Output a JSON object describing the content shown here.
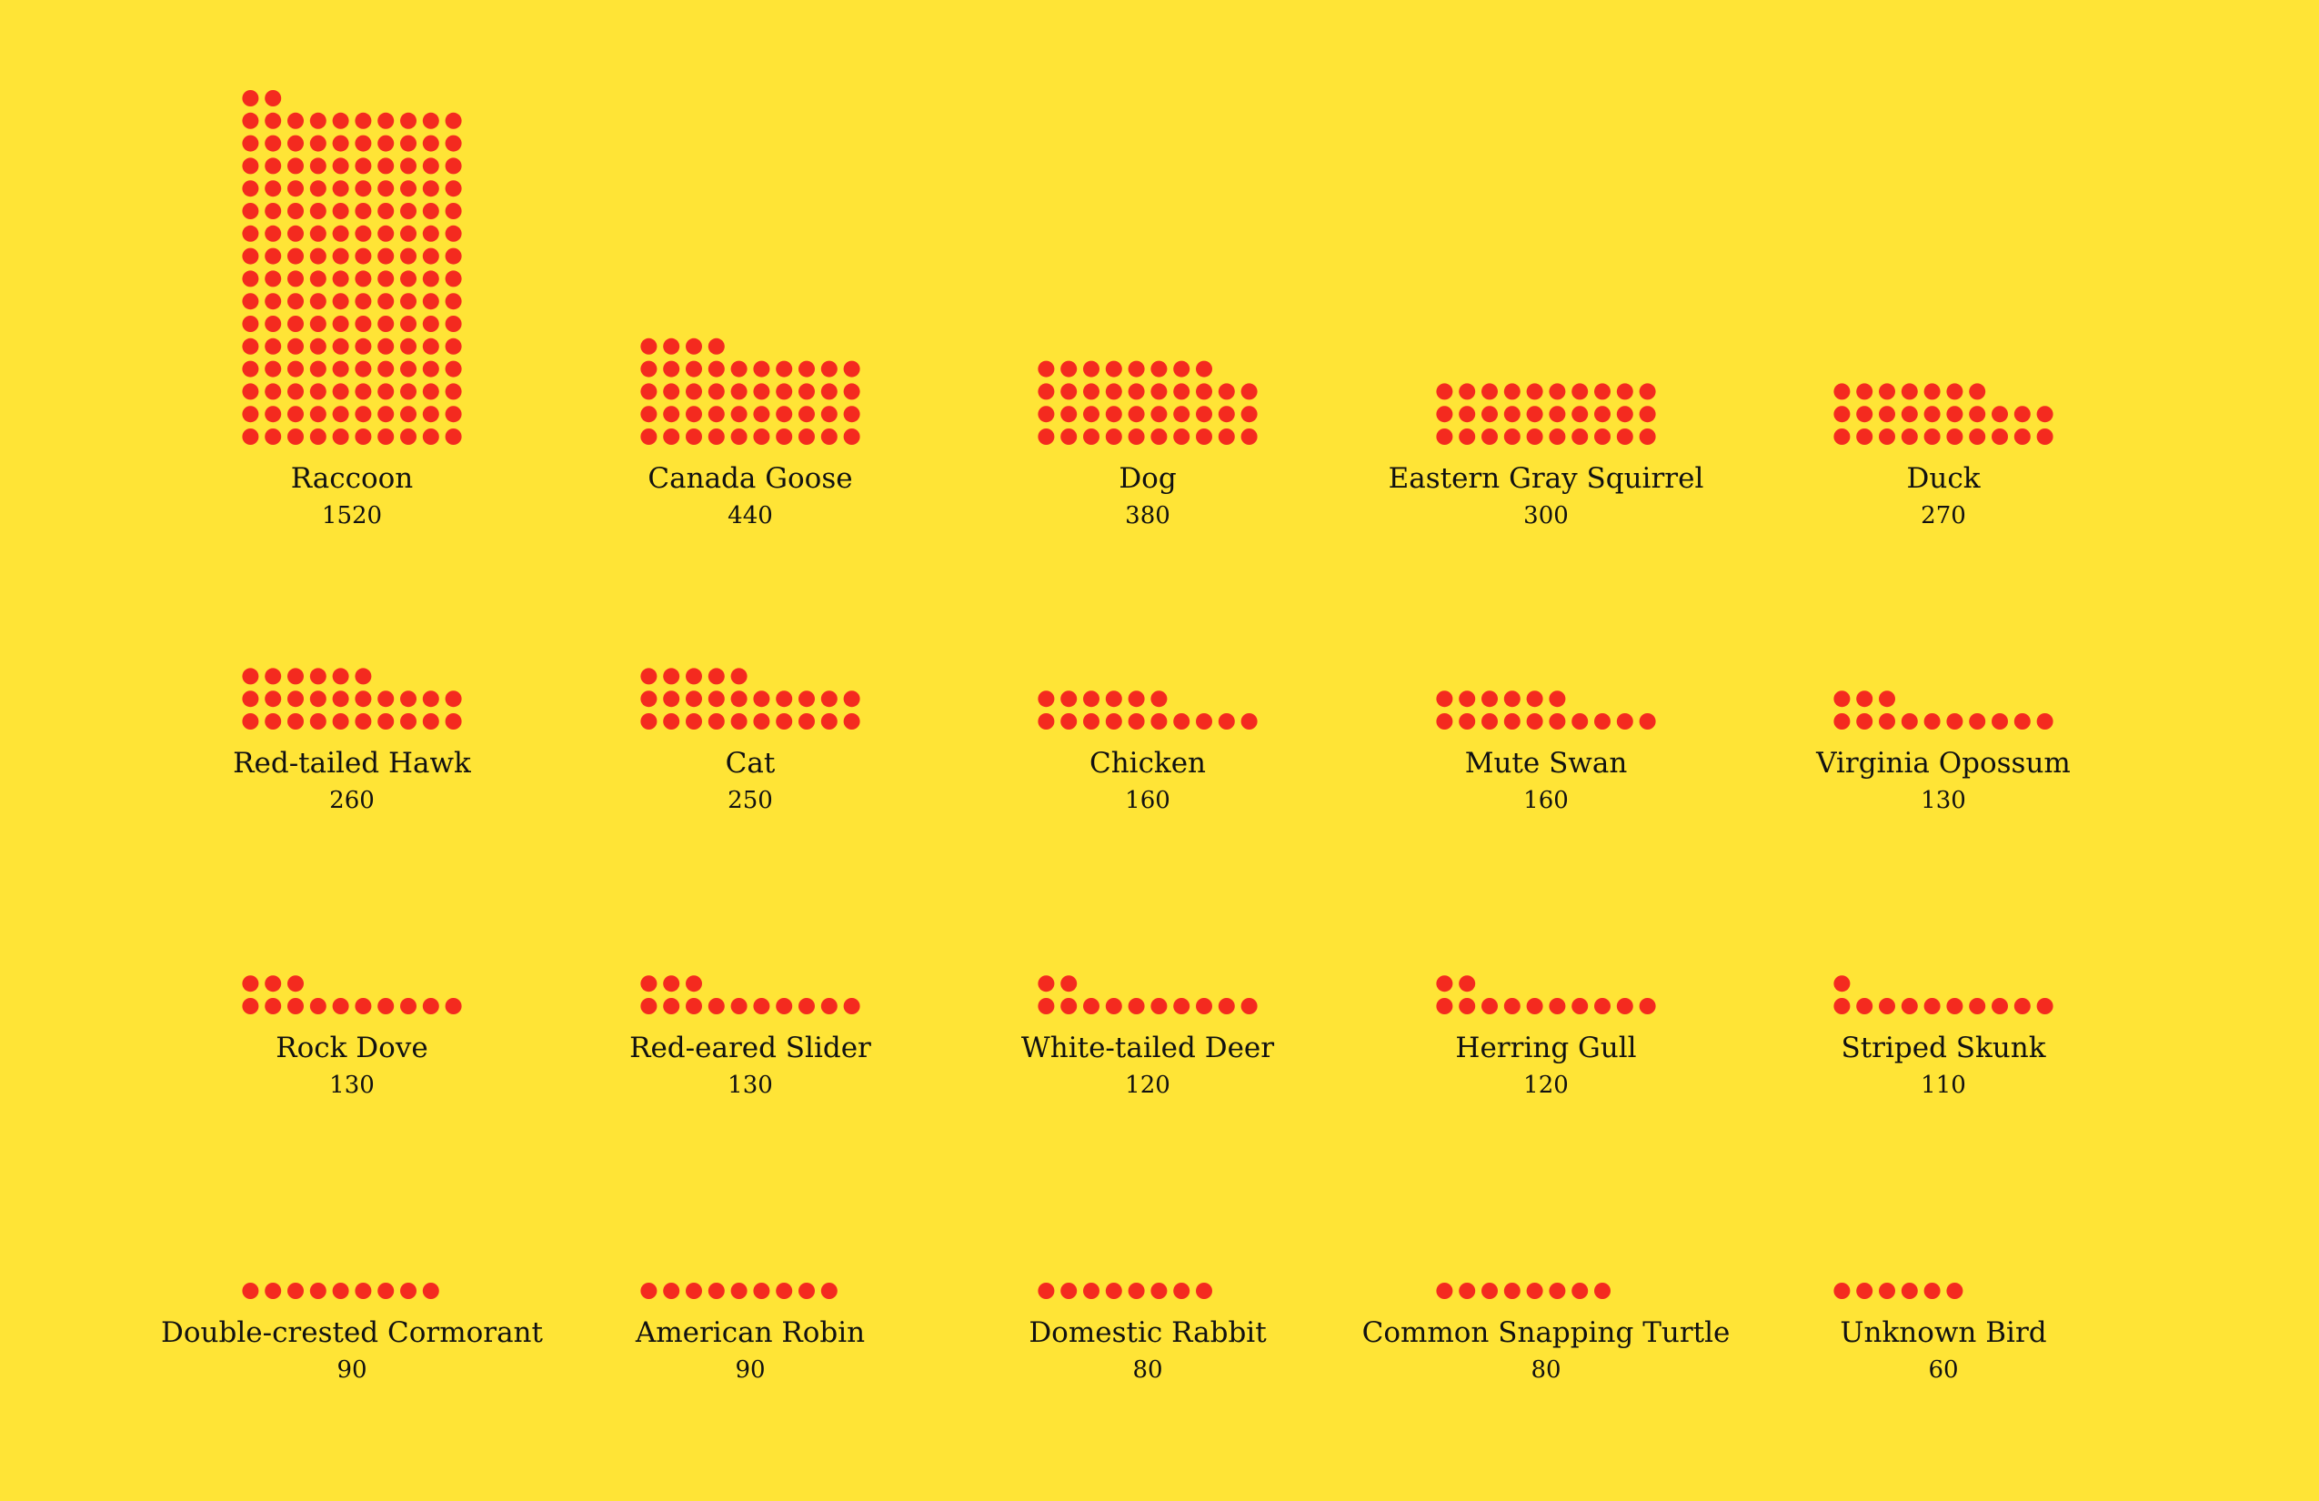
{
  "chart_data": {
    "type": "waffle",
    "unit_per_dot": 10,
    "dot_color": "#F42A1F",
    "background_color": "#FFE436",
    "text_color": "#111111",
    "categories": [
      "Raccoon",
      "Canada Goose",
      "Dog",
      "Eastern Gray Squirrel",
      "Duck",
      "Red-tailed Hawk",
      "Cat",
      "Chicken",
      "Mute Swan",
      "Virginia Opossum",
      "Rock Dove",
      "Red-eared Slider",
      "White-tailed Deer",
      "Herring Gull",
      "Striped Skunk",
      "Double-crested Cormorant",
      "American Robin",
      "Domestic Rabbit",
      "Common Snapping Turtle",
      "Unknown Bird"
    ],
    "values": [
      1520,
      440,
      380,
      300,
      270,
      260,
      250,
      160,
      160,
      130,
      130,
      130,
      120,
      120,
      110,
      90,
      90,
      80,
      80,
      60
    ],
    "value_labels": [
      "1520",
      "440",
      "380",
      "300",
      "270",
      "260",
      "250",
      "160",
      "160",
      "130",
      "130",
      "130",
      "120",
      "120",
      "110",
      "90",
      "90",
      "80",
      "80",
      "60"
    ]
  }
}
